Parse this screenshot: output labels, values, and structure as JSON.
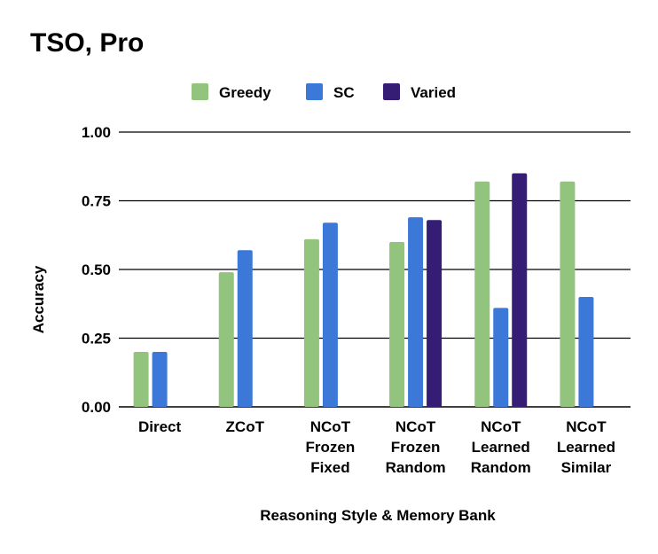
{
  "chart_data": {
    "type": "bar",
    "title": "TSO, Pro",
    "xlabel": "Reasoning Style & Memory Bank",
    "ylabel": "Accuracy",
    "ylim": [
      0,
      1
    ],
    "yticks": [
      "0.00",
      "0.25",
      "0.50",
      "0.75",
      "1.00"
    ],
    "grid": true,
    "legend_position": "top",
    "categories": [
      [
        "Direct"
      ],
      [
        "ZCoT"
      ],
      [
        "NCoT",
        "Frozen",
        "Fixed"
      ],
      [
        "NCoT",
        "Frozen",
        "Random"
      ],
      [
        "NCoT",
        "Learned",
        "Random"
      ],
      [
        "NCoT",
        "Learned",
        "Similar"
      ]
    ],
    "series": [
      {
        "name": "Greedy",
        "color": "#93c47d",
        "values": [
          0.2,
          0.49,
          0.61,
          0.6,
          0.82,
          0.82
        ]
      },
      {
        "name": "SC",
        "color": "#3c78d8",
        "values": [
          0.2,
          0.57,
          0.67,
          0.69,
          0.36,
          0.4
        ]
      },
      {
        "name": "Varied",
        "color": "#351c75",
        "values": [
          null,
          null,
          null,
          0.68,
          0.85,
          null
        ]
      }
    ]
  }
}
